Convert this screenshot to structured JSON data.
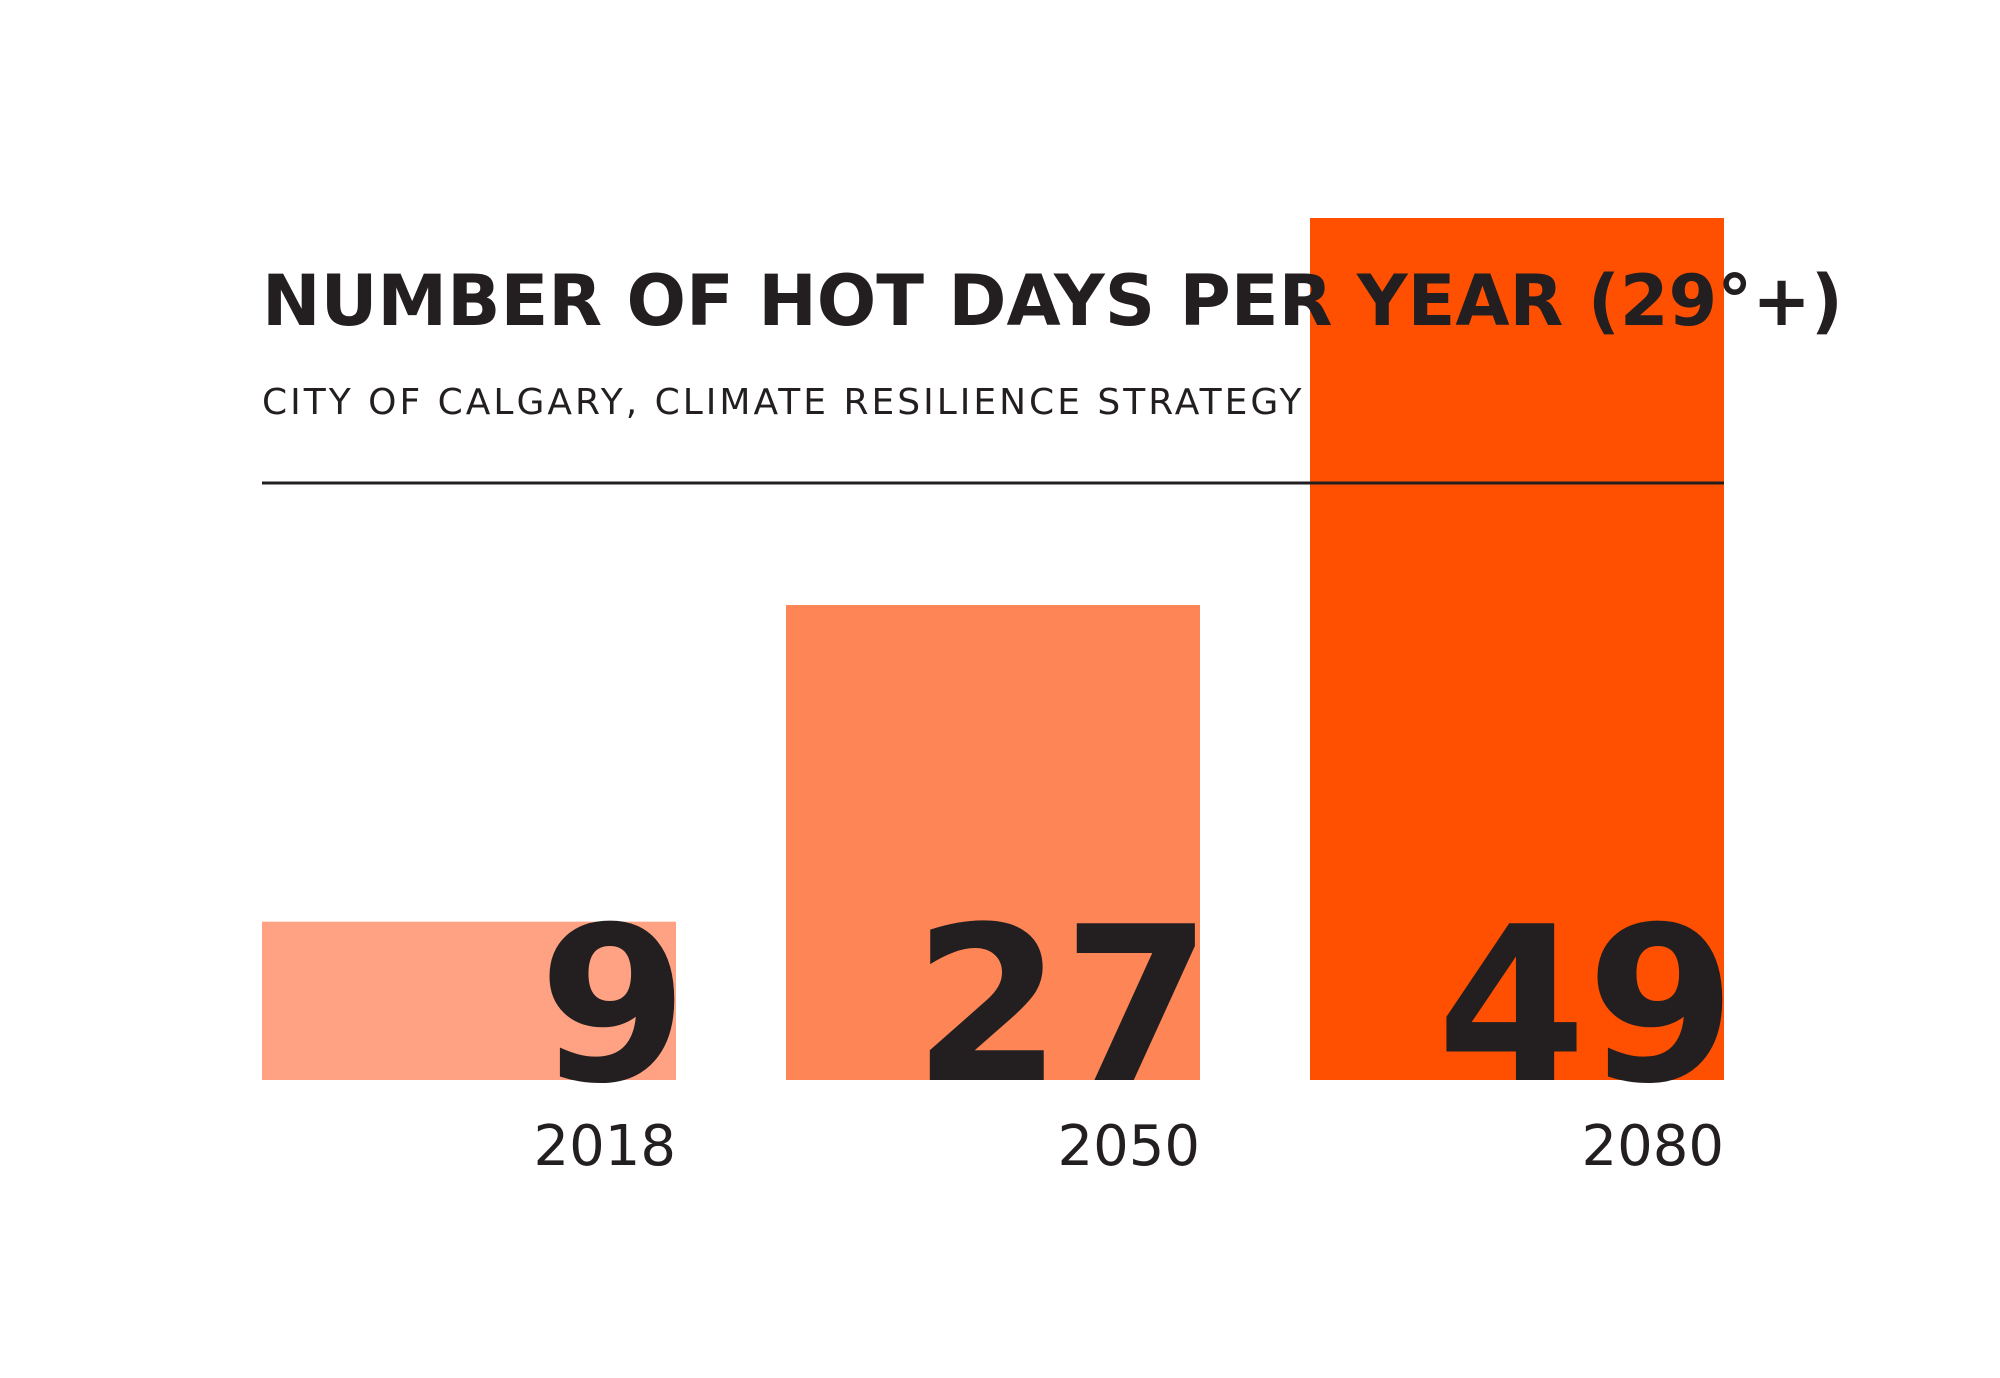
{
  "chart_data": {
    "type": "bar",
    "title": "NUMBER OF HOT DAYS PER YEAR (29°+)",
    "subtitle": "CITY OF CALGARY, CLIMATE RESILIENCE STRATEGY",
    "xlabel": "",
    "ylabel": "",
    "categories": [
      "2018",
      "2050",
      "2080"
    ],
    "values": [
      9,
      27,
      49
    ],
    "value_labels": [
      "9",
      "27",
      "49"
    ],
    "bar_colors": [
      "#fea283",
      "#fe8656",
      "#fe5000"
    ],
    "ylim": [
      0,
      49
    ],
    "grid": false,
    "legend": "none"
  },
  "colors": {
    "text": "#231f20",
    "rule": "#231f20",
    "background": "#ffffff"
  }
}
